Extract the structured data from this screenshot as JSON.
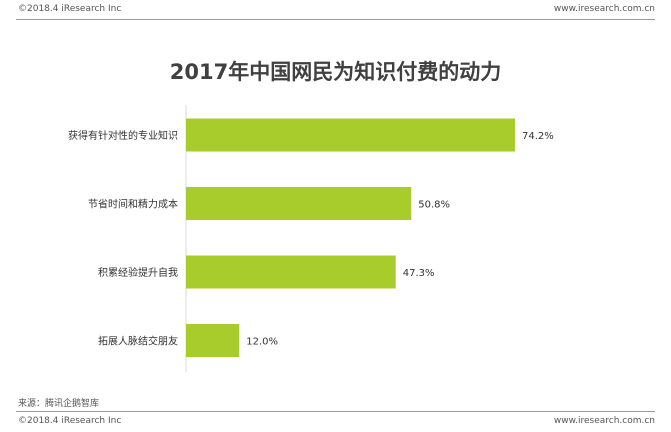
{
  "header": {
    "left": "©2018.4 iResearch Inc",
    "right": "www.iresearch.com.cn"
  },
  "footer": {
    "left": "©2018.4 iResearch Inc",
    "right": "www.iresearch.com.cn",
    "source": "来源：腾讯企鹅智库"
  },
  "colors": {
    "bar": "#a8cc2c",
    "axis": "#d9d9d9"
  },
  "chart_data": {
    "type": "bar",
    "orientation": "horizontal",
    "title": "2017年中国网民为知识付费的动力",
    "categories": [
      "获得有针对性的专业知识",
      "节省时间和精力成本",
      "积累经验提升自我",
      "拓展人脉结交朋友"
    ],
    "values": [
      74.2,
      50.8,
      47.3,
      12.0
    ],
    "value_labels": [
      "74.2%",
      "50.8%",
      "47.3%",
      "12.0%"
    ],
    "unit": "%",
    "xlim": [
      0,
      74.2
    ],
    "grid": false,
    "legend": "none"
  }
}
